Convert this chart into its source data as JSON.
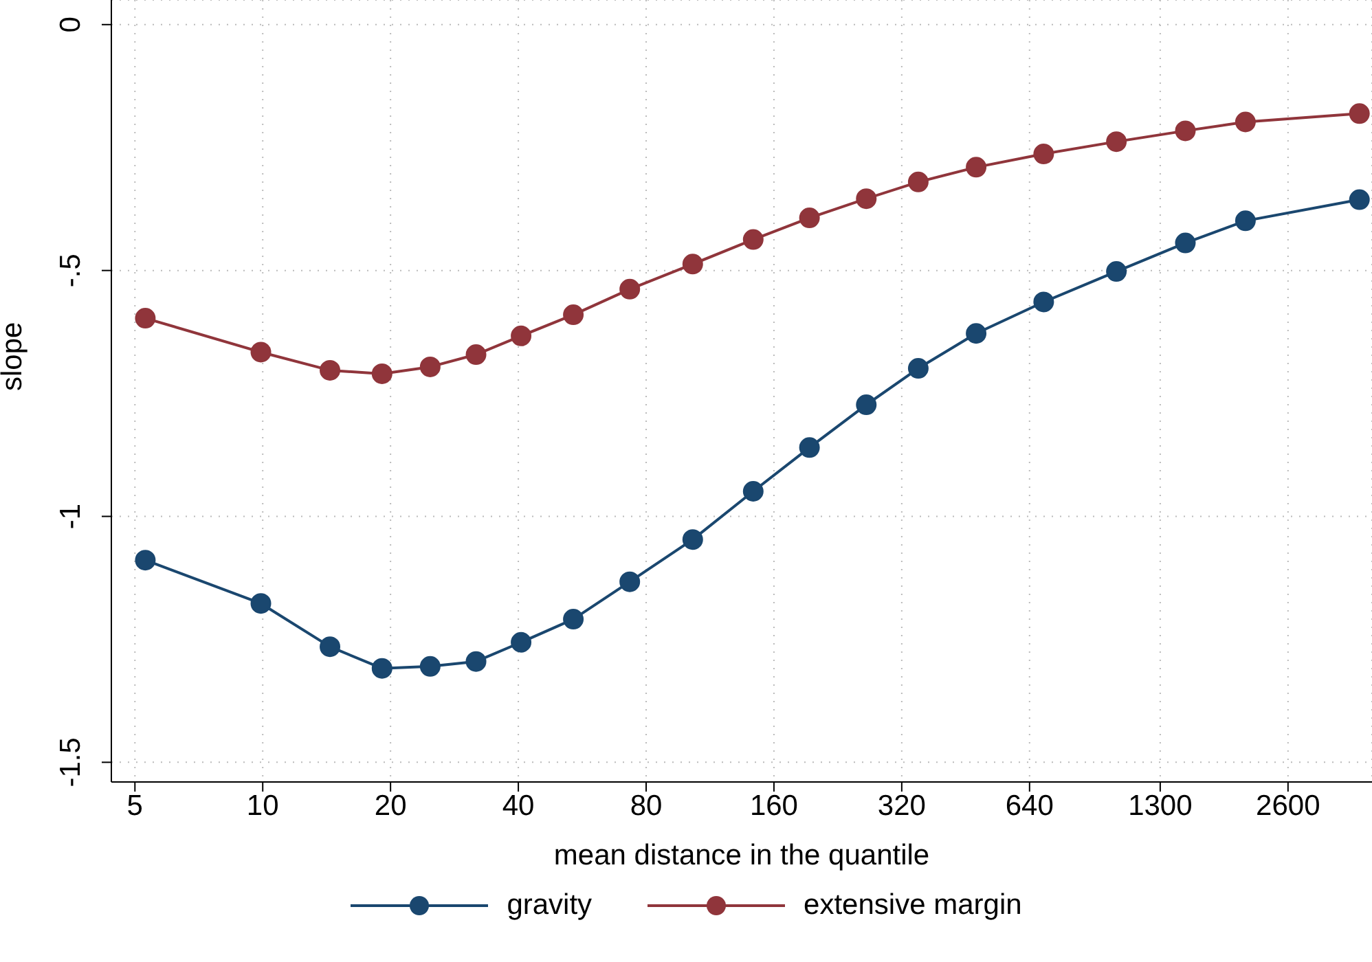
{
  "chart_data": {
    "type": "line",
    "xlabel": "mean distance in the quantile",
    "ylabel": "slope",
    "x": [
      5.29,
      9.9,
      14.4,
      19.1,
      24.8,
      31.8,
      40.6,
      53.9,
      73.2,
      103,
      143,
      194,
      264,
      350,
      479,
      691,
      1025,
      1490,
      2064,
      3830
    ],
    "series": [
      {
        "name": "gravity",
        "color": "#1a476f",
        "values": [
          -1.089,
          -1.177,
          -1.265,
          -1.309,
          -1.305,
          -1.295,
          -1.256,
          -1.209,
          -1.133,
          -1.047,
          -0.949,
          -0.86,
          -0.773,
          -0.699,
          -0.628,
          -0.564,
          -0.502,
          -0.444,
          -0.399,
          -0.356
        ]
      },
      {
        "name": "extensive margin",
        "color": "#90353b",
        "values": [
          -0.597,
          -0.666,
          -0.703,
          -0.71,
          -0.696,
          -0.671,
          -0.633,
          -0.59,
          -0.538,
          -0.487,
          -0.437,
          -0.393,
          -0.354,
          -0.32,
          -0.29,
          -0.263,
          -0.238,
          -0.216,
          -0.198,
          -0.181
        ]
      }
    ],
    "log": "x",
    "xlim": [
      4.4,
      4100
    ],
    "xticks": [
      5,
      10,
      20,
      40,
      80,
      160,
      320,
      640,
      1300,
      2600
    ],
    "ylim": [
      -1.54,
      0.05
    ],
    "yticks": [
      0,
      {
        "value": -0.5,
        "label": "-.5"
      },
      -1,
      -1.5
    ],
    "grid": true,
    "legend": "bottom",
    "marker": "circle",
    "line_style": "solid"
  }
}
